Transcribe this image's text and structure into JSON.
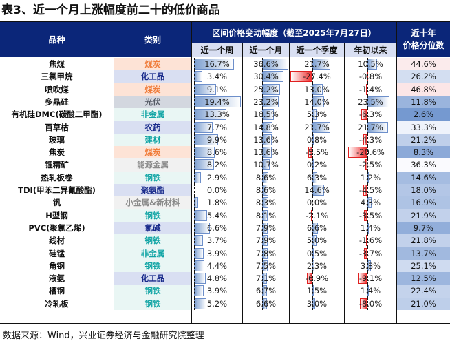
{
  "title": "表3、近一个月上涨幅度前二十的低价商品",
  "header": {
    "col_name": "品种",
    "col_category": "类别",
    "group_label": "区间价格变动幅度（截至2025年7月27日）",
    "sub_week": "近一个周",
    "sub_month": "近一个月",
    "sub_quarter": "近一个季度",
    "sub_ytd": "年初以来",
    "col_percentile_line1": "近十年",
    "col_percentile_line2": "价格分位数"
  },
  "category_styles": {
    "煤炭": {
      "bg": "#fde3d6",
      "fg": "#f07c3a"
    },
    "化工品": {
      "bg": "#d9dff2",
      "fg": "#1a2c8c"
    },
    "光伏": {
      "bg": "#d3d7df",
      "fg": "#555b66"
    },
    "非金属": {
      "bg": "#e9f6f4",
      "fg": "#12a5a5"
    },
    "农药": {
      "bg": "#d9dff2",
      "fg": "#1a2c8c"
    },
    "建材": {
      "bg": "#e9f6f4",
      "fg": "#12a5a5"
    },
    "能源金属": {
      "bg": "#f1f1f1",
      "fg": "#8a8a8a"
    },
    "钢铁": {
      "bg": "#e9f6f4",
      "fg": "#12a5a5"
    },
    "聚氨酯": {
      "bg": "#d9dff2",
      "fg": "#1a2c8c"
    },
    "小金属&新材料": {
      "bg": "#f1f1f1",
      "fg": "#8a8a8a"
    },
    "氯碱": {
      "bg": "#d9dff2",
      "fg": "#1a2c8c"
    }
  },
  "rows": [
    {
      "name": "焦煤",
      "category": "煤炭",
      "week": "16.7%",
      "month": "36.6%",
      "quarter": "21.7%",
      "ytd": "10.5%",
      "percentile": "44.6%",
      "w": 16.7,
      "m": 36.6,
      "q": 21.7,
      "y": 10.5,
      "p": 44.6
    },
    {
      "name": "三氯甲烷",
      "category": "化工品",
      "week": "3.4%",
      "month": "30.4%",
      "quarter": "-27.4%",
      "ytd": "-0.8%",
      "percentile": "26.2%",
      "w": 3.4,
      "m": 30.4,
      "q": -27.4,
      "y": -0.8,
      "p": 26.2
    },
    {
      "name": "喷吹煤",
      "category": "煤炭",
      "week": "9.1%",
      "month": "25.2%",
      "quarter": "13.0%",
      "ytd": "-1.4%",
      "percentile": "46.8%",
      "w": 9.1,
      "m": 25.2,
      "q": 13.0,
      "y": -1.4,
      "p": 46.8
    },
    {
      "name": "多晶硅",
      "category": "光伏",
      "week": "19.4%",
      "month": "23.2%",
      "quarter": "14.0%",
      "ytd": "23.5%",
      "percentile": "11.8%",
      "w": 19.4,
      "m": 23.2,
      "q": 14.0,
      "y": 23.5,
      "p": 11.8
    },
    {
      "name": "有机硅DMC(碳酸二甲酯)",
      "category": "非金属",
      "week": "13.3%",
      "month": "16.5%",
      "quarter": "5.3%",
      "ytd": "-6.3%",
      "percentile": "2.6%",
      "w": 13.3,
      "m": 16.5,
      "q": 5.3,
      "y": -6.3,
      "p": 2.6
    },
    {
      "name": "百草枯",
      "category": "农药",
      "week": "7.7%",
      "month": "14.8%",
      "quarter": "21.7%",
      "ytd": "21.7%",
      "percentile": "33.3%",
      "w": 7.7,
      "m": 14.8,
      "q": 21.7,
      "y": 21.7,
      "p": 33.3
    },
    {
      "name": "玻璃",
      "category": "建材",
      "week": "9.9%",
      "month": "13.6%",
      "quarter": "0.8%",
      "ytd": "-4.3%",
      "percentile": "21.2%",
      "w": 9.9,
      "m": 13.6,
      "q": 0.8,
      "y": -4.3,
      "p": 21.2
    },
    {
      "name": "焦炭",
      "category": "煤炭",
      "week": "8.6%",
      "month": "13.6%",
      "quarter": "-5.5%",
      "ytd": "-20.6%",
      "percentile": "8.3%",
      "w": 8.6,
      "m": 13.6,
      "q": -5.5,
      "y": -20.6,
      "p": 8.3
    },
    {
      "name": "锂精矿",
      "category": "能源金属",
      "week": "8.2%",
      "month": "10.7%",
      "quarter": "0.2%",
      "ytd": "-2.5%",
      "percentile": "36.3%",
      "w": 8.2,
      "m": 10.7,
      "q": 0.2,
      "y": -2.5,
      "p": 36.3
    },
    {
      "name": "热轧板卷",
      "category": "钢铁",
      "week": "2.9%",
      "month": "8.6%",
      "quarter": "6.3%",
      "ytd": "1.2%",
      "percentile": "14.6%",
      "w": 2.9,
      "m": 8.6,
      "q": 6.3,
      "y": 1.2,
      "p": 14.6
    },
    {
      "name": "TDI(甲苯二异氰酸酯)",
      "category": "聚氨酯",
      "week": "0.0%",
      "month": "8.6%",
      "quarter": "14.6%",
      "ytd": "-4.5%",
      "percentile": "18.0%",
      "w": 0.0,
      "m": 8.6,
      "q": 14.6,
      "y": -4.5,
      "p": 18.0
    },
    {
      "name": "钒",
      "category": "小金属&新材料",
      "week": "1.8%",
      "month": "8.3%",
      "quarter": "0.0%",
      "ytd": "4.3%",
      "percentile": "16.9%",
      "w": 1.8,
      "m": 8.3,
      "q": 0.0,
      "y": 4.3,
      "p": 16.9
    },
    {
      "name": "H型钢",
      "category": "钢铁",
      "week": "5.4%",
      "month": "8.1%",
      "quarter": "-2.1%",
      "ytd": "-3.5%",
      "percentile": "21.9%",
      "w": 5.4,
      "m": 8.1,
      "q": -2.1,
      "y": -3.5,
      "p": 21.9
    },
    {
      "name": "PVC(聚氯乙烯)",
      "category": "氯碱",
      "week": "6.6%",
      "month": "7.9%",
      "quarter": "6.6%",
      "ytd": "1.4%",
      "percentile": "9.7%",
      "w": 6.6,
      "m": 7.9,
      "q": 6.6,
      "y": 1.4,
      "p": 9.7
    },
    {
      "name": "线材",
      "category": "钢铁",
      "week": "3.7%",
      "month": "7.9%",
      "quarter": "5.0%",
      "ytd": "-1.6%",
      "percentile": "21.8%",
      "w": 3.7,
      "m": 7.9,
      "q": 5.0,
      "y": -1.6,
      "p": 21.8
    },
    {
      "name": "硅锰",
      "category": "非金属",
      "week": "3.9%",
      "month": "7.8%",
      "quarter": "0.5%",
      "ytd": "-3.7%",
      "percentile": "13.7%",
      "w": 3.9,
      "m": 7.8,
      "q": 0.5,
      "y": -3.7,
      "p": 13.7
    },
    {
      "name": "角钢",
      "category": "钢铁",
      "week": "4.4%",
      "month": "7.5%",
      "quarter": "2.3%",
      "ytd": "3.8%",
      "percentile": "25.1%",
      "w": 4.4,
      "m": 7.5,
      "q": 2.3,
      "y": 3.8,
      "p": 25.1
    },
    {
      "name": "液氨",
      "category": "化工品",
      "week": "4.8%",
      "month": "7.1%",
      "quarter": "-6.9%",
      "ytd": "-9.1%",
      "percentile": "12.5%",
      "w": 4.8,
      "m": 7.1,
      "q": -6.9,
      "y": -9.1,
      "p": 12.5
    },
    {
      "name": "槽钢",
      "category": "钢铁",
      "week": "3.9%",
      "month": "6.7%",
      "quarter": "1.5%",
      "ytd": "1.4%",
      "percentile": "22.4%",
      "w": 3.9,
      "m": 6.7,
      "q": 1.5,
      "y": 1.4,
      "p": 22.4
    },
    {
      "name": "冷轧板",
      "category": "钢铁",
      "week": "5.2%",
      "month": "6.6%",
      "quarter": "3.0%",
      "ytd": "-8.0%",
      "percentile": "21.0%",
      "w": 5.2,
      "m": 6.6,
      "q": 3.0,
      "y": -8.0,
      "p": 21.0
    }
  ],
  "footer": "数据来源：Wind，兴业证券经济与金融研究院整理"
}
